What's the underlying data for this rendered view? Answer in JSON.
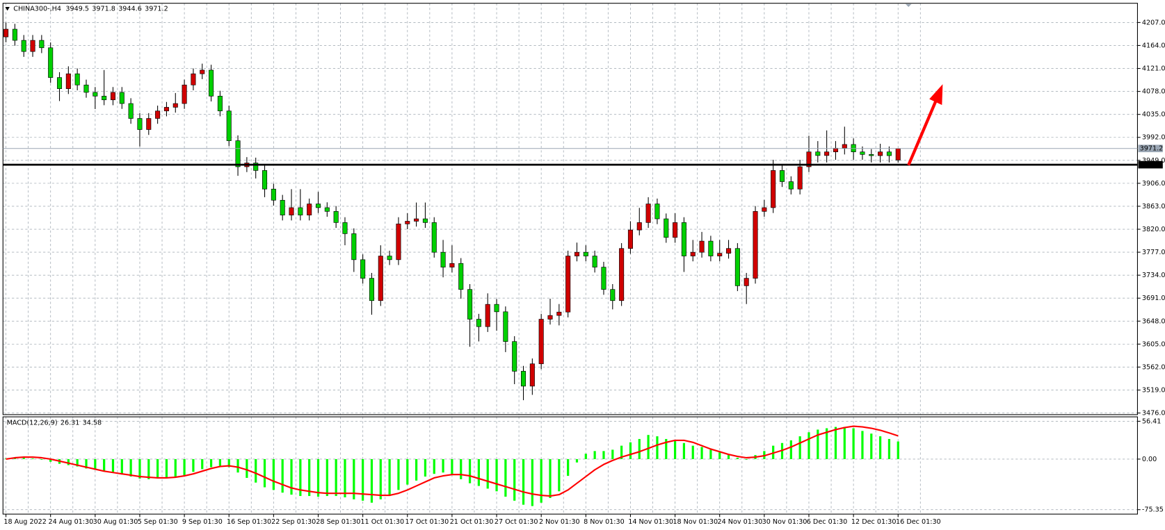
{
  "chart_data": [
    {
      "type": "candlestick",
      "title": "CHINA300-,H4",
      "categories": [
        "18 Aug 2022",
        null,
        null,
        null,
        null,
        "24 Aug 01:30",
        null,
        null,
        null,
        null,
        "30 Aug 01:30",
        null,
        null,
        null,
        null,
        "5 Sep 01:30",
        null,
        null,
        null,
        null,
        "9 Sep 01:30",
        null,
        null,
        null,
        null,
        "16 Sep 01:30",
        null,
        null,
        null,
        null,
        "22 Sep 01:30",
        null,
        null,
        null,
        null,
        "28 Sep 01:30",
        null,
        null,
        null,
        null,
        "11 Oct 01:30",
        null,
        null,
        null,
        null,
        "17 Oct 01:30",
        null,
        null,
        null,
        null,
        "21 Oct 01:30",
        null,
        null,
        null,
        null,
        "27 Oct 01:30",
        null,
        null,
        null,
        null,
        "2 Nov 01:30",
        null,
        null,
        null,
        null,
        "8 Nov 01:30",
        null,
        null,
        null,
        null,
        "14 Nov 01:30",
        null,
        null,
        null,
        null,
        "18 Nov 01:30",
        null,
        null,
        null,
        null,
        "24 Nov 01:30",
        null,
        null,
        null,
        null,
        "30 Nov 01:30",
        null,
        null,
        null,
        null,
        "6 Dec 01:30",
        null,
        null,
        null,
        null,
        "12 Dec 01:30",
        null,
        null,
        null,
        null,
        "16 Dec 01:30"
      ],
      "open": [
        4180,
        4194.5,
        4173.6,
        4152.7,
        4173.6,
        4159.7,
        4104.0,
        4083.1,
        4111.0,
        4090.1,
        4076.2,
        4069.2,
        4062.2,
        4076.2,
        4055.3,
        4027.4,
        4006.6,
        4027.4,
        4041.4,
        4048.3,
        4055.3,
        4090.1,
        4111.0,
        4117.9,
        4069.2,
        4041.4,
        3985.7,
        3937.0,
        3944.0,
        3930.0,
        3895.2,
        3874.3,
        3846.5,
        3860.4,
        3846.5,
        3867.4,
        3860.4,
        3853.4,
        3832.5,
        3811.7,
        3763.0,
        3728.2,
        3686.4,
        3769.9,
        3763.0,
        3830.0,
        3835.0,
        3839.5,
        3832.5,
        3776.9,
        3749.0,
        3756.0,
        3707.3,
        3651.6,
        3637.7,
        3679.4,
        3665.5,
        3609.8,
        3554.2,
        3526.3,
        3568.1,
        3651.6,
        3658.6,
        3665.0,
        3769.9,
        3776.9,
        3769.9,
        3749.0,
        3707.3,
        3686.4,
        3784.0,
        3818.6,
        3832.5,
        3867.4,
        3839.5,
        3804.7,
        3832.5,
        3769.9,
        3776.9,
        3797.8,
        3769.9,
        3775.0,
        3784.0,
        3714.2,
        3728.2,
        3853.4,
        3860.4,
        3930.0,
        3909.1,
        3895.2,
        3937.0,
        3964.8,
        3958.0,
        3964.8,
        3971.8,
        3978.7,
        3964.8,
        3960.0,
        3957.8,
        3964.8,
        3949.5
      ],
      "high": [
        4207,
        4204.5,
        4183.6,
        4183.6,
        4183.6,
        4169.7,
        4114.0,
        4125,
        4121,
        4100.1,
        4086.2,
        4118,
        4086.2,
        4086.2,
        4065.3,
        4037.4,
        4037.4,
        4051.4,
        4058.3,
        4075,
        4100.1,
        4121.0,
        4130,
        4127.9,
        4079.2,
        4051.4,
        3995.7,
        3955,
        3954,
        3940,
        3905.2,
        3884.3,
        3895,
        3895,
        3877.4,
        3890,
        3870.4,
        3863.4,
        3842.5,
        3821.7,
        3773,
        3738.2,
        3790,
        3779.9,
        3842.5,
        3850,
        3870,
        3870,
        3842.5,
        3800,
        3790,
        3766,
        3717.3,
        3661.6,
        3700,
        3689.4,
        3675.5,
        3619.8,
        3564.2,
        3578.1,
        3661.6,
        3690,
        3680,
        3779.9,
        3795,
        3790,
        3779.9,
        3759,
        3717.3,
        3794,
        3835,
        3860,
        3880,
        3877.4,
        3849.5,
        3850,
        3842.5,
        3800,
        3815,
        3807.8,
        3800,
        3800,
        3794,
        3738.2,
        3863.4,
        3875,
        3950,
        3940,
        3919.1,
        3950,
        3995,
        3985,
        4005,
        3985,
        4012,
        3990,
        3975,
        3970,
        3980,
        3975,
        3971.8
      ],
      "low": [
        4170,
        4163.6,
        4142.7,
        4142.7,
        4149.7,
        4094.0,
        4060,
        4073.1,
        4080.1,
        4066.2,
        4045,
        4052.2,
        4052.2,
        4045.3,
        4017.4,
        3975,
        3996.6,
        4017.4,
        4031.4,
        4038.3,
        4045.3,
        4080.1,
        4101.0,
        4059.2,
        4031.4,
        3975.7,
        3920,
        3927,
        3915,
        3880,
        3864.3,
        3836.5,
        3836.5,
        3836.5,
        3836.5,
        3850.4,
        3843.4,
        3822.5,
        3790,
        3740,
        3718.2,
        3660,
        3676.4,
        3753.0,
        3753,
        3820,
        3825,
        3822.5,
        3766.9,
        3730,
        3739,
        3690,
        3600,
        3610,
        3627.7,
        3630,
        3590,
        3530,
        3500,
        3510,
        3558.1,
        3641.6,
        3640,
        3655,
        3759.9,
        3759.9,
        3739,
        3697.3,
        3670,
        3676.4,
        3774,
        3808.6,
        3822.5,
        3829.5,
        3794.7,
        3794.7,
        3740,
        3759.9,
        3766.9,
        3759.9,
        3759.9,
        3765,
        3704.2,
        3680,
        3718.2,
        3843.4,
        3850.4,
        3899.1,
        3885.2,
        3885.2,
        3927,
        3945,
        3945,
        3950,
        3960,
        3950,
        3950,
        3945,
        3945,
        3945,
        3944.6
      ],
      "close": [
        4194.5,
        4173.6,
        4152.7,
        4173.6,
        4159.7,
        4104.0,
        4083.1,
        4111.0,
        4090.1,
        4076.2,
        4069.2,
        4062.2,
        4076.2,
        4055.3,
        4027.4,
        4006.6,
        4027.4,
        4041.4,
        4048.3,
        4055.3,
        4090.1,
        4111.0,
        4117.9,
        4069.2,
        4041.4,
        3985.7,
        3937.0,
        3944.0,
        3930.0,
        3895.2,
        3874.3,
        3846.5,
        3860.4,
        3846.5,
        3867.4,
        3860.4,
        3853.4,
        3832.5,
        3811.7,
        3763.0,
        3728.2,
        3686.4,
        3769.9,
        3763.0,
        3830.0,
        3835.0,
        3839.5,
        3832.5,
        3776.9,
        3749.0,
        3756.0,
        3707.3,
        3651.6,
        3637.7,
        3679.4,
        3665.5,
        3609.8,
        3554.2,
        3526.3,
        3568.1,
        3651.6,
        3658.6,
        3665.0,
        3769.9,
        3776.9,
        3769.9,
        3749.0,
        3707.3,
        3686.4,
        3784.0,
        3818.6,
        3832.5,
        3867.4,
        3839.5,
        3804.7,
        3832.5,
        3769.9,
        3776.9,
        3797.8,
        3769.9,
        3775.0,
        3784.0,
        3714.2,
        3728.2,
        3853.4,
        3860.4,
        3930.0,
        3909.1,
        3895.2,
        3937.0,
        3964.8,
        3958.0,
        3964.8,
        3971.8,
        3978.7,
        3964.8,
        3960.0,
        3957.8,
        3964.8,
        3957.8,
        3971.2
      ],
      "up_color": "#d00000",
      "down_color": "#00d000",
      "ylim": [
        3473,
        4243
      ],
      "yticks": [
        {
          "value": 4207,
          "label": "4207.0"
        },
        {
          "value": 4164,
          "label": "4164.0"
        },
        {
          "value": 4121,
          "label": "4121.0"
        },
        {
          "value": 4078,
          "label": "4078.0"
        },
        {
          "value": 4035,
          "label": "4035.0"
        },
        {
          "value": 3992,
          "label": "3992.0"
        },
        {
          "value": 3949,
          "label": "3949.0"
        },
        {
          "value": 3906,
          "label": "3906.0"
        },
        {
          "value": 3863,
          "label": "3863.0"
        },
        {
          "value": 3820,
          "label": "3820.0"
        },
        {
          "value": 3777,
          "label": "3777.0"
        },
        {
          "value": 3734,
          "label": "3734.0"
        },
        {
          "value": 3691,
          "label": "3691.0"
        },
        {
          "value": 3648,
          "label": "3648.0"
        },
        {
          "value": 3605,
          "label": "3605.0"
        },
        {
          "value": 3562,
          "label": "3562.0"
        },
        {
          "value": 3519,
          "label": "3519.0"
        },
        {
          "value": 3476,
          "label": "3476.0"
        }
      ],
      "grid": true,
      "hline": 3940.8,
      "hline_color": "#000000",
      "price_line_color": "#9aa6b4"
    },
    {
      "type": "macd",
      "title": "MACD(12,26,9)",
      "histogram": {
        "color": "#00ff00",
        "values": [
          1,
          2,
          2,
          1,
          -1,
          -4,
          -7,
          -9,
          -11,
          -14,
          -16,
          -18,
          -20,
          -23,
          -26,
          -29,
          -30,
          -29,
          -28,
          -27,
          -24,
          -19,
          -15,
          -12,
          -10,
          -12,
          -20,
          -28,
          -35,
          -42,
          -46,
          -50,
          -53,
          -55,
          -55,
          -56,
          -55,
          -55,
          -57,
          -60,
          -62,
          -65,
          -60,
          -55,
          -46,
          -38,
          -32,
          -26,
          -22,
          -20,
          -24,
          -30,
          -36,
          -40,
          -44,
          -48,
          -56,
          -62,
          -68,
          -70,
          -65,
          -58,
          -48,
          -25,
          -5,
          8,
          12,
          12,
          14,
          20,
          25,
          30,
          36,
          34,
          30,
          28,
          24,
          20,
          18,
          14,
          10,
          6,
          2,
          -1,
          6,
          12,
          20,
          24,
          28,
          34,
          40,
          44,
          46,
          48,
          48,
          46,
          42,
          38,
          34,
          30,
          26.31
        ]
      },
      "signal": {
        "color": "#ff0000",
        "values": [
          0,
          2,
          3,
          3,
          2,
          0,
          -3,
          -6,
          -9,
          -12,
          -15,
          -18,
          -20,
          -22,
          -24,
          -26,
          -27,
          -28,
          -28,
          -27,
          -25,
          -22,
          -18,
          -14,
          -11,
          -10,
          -12,
          -16,
          -21,
          -27,
          -33,
          -38,
          -43,
          -46,
          -48,
          -50,
          -51,
          -51,
          -51,
          -51,
          -52,
          -53,
          -54,
          -54,
          -51,
          -46,
          -40,
          -34,
          -28,
          -25,
          -23,
          -23,
          -25,
          -29,
          -33,
          -37,
          -41,
          -45,
          -49,
          -52,
          -54,
          -55,
          -53,
          -46,
          -36,
          -26,
          -16,
          -8,
          -2,
          3,
          7,
          11,
          16,
          21,
          25,
          28,
          28,
          25,
          20,
          15,
          11,
          7,
          4,
          2,
          3,
          5,
          9,
          13,
          18,
          24,
          30,
          36,
          40,
          44,
          47,
          49,
          48,
          46,
          43,
          39,
          34.58
        ]
      },
      "ylim": [
        -82,
        63
      ],
      "yticks": [
        56.41,
        {
          "value": 0,
          "label": "0.00"
        },
        -75.35
      ],
      "grid": true
    }
  ]
}
